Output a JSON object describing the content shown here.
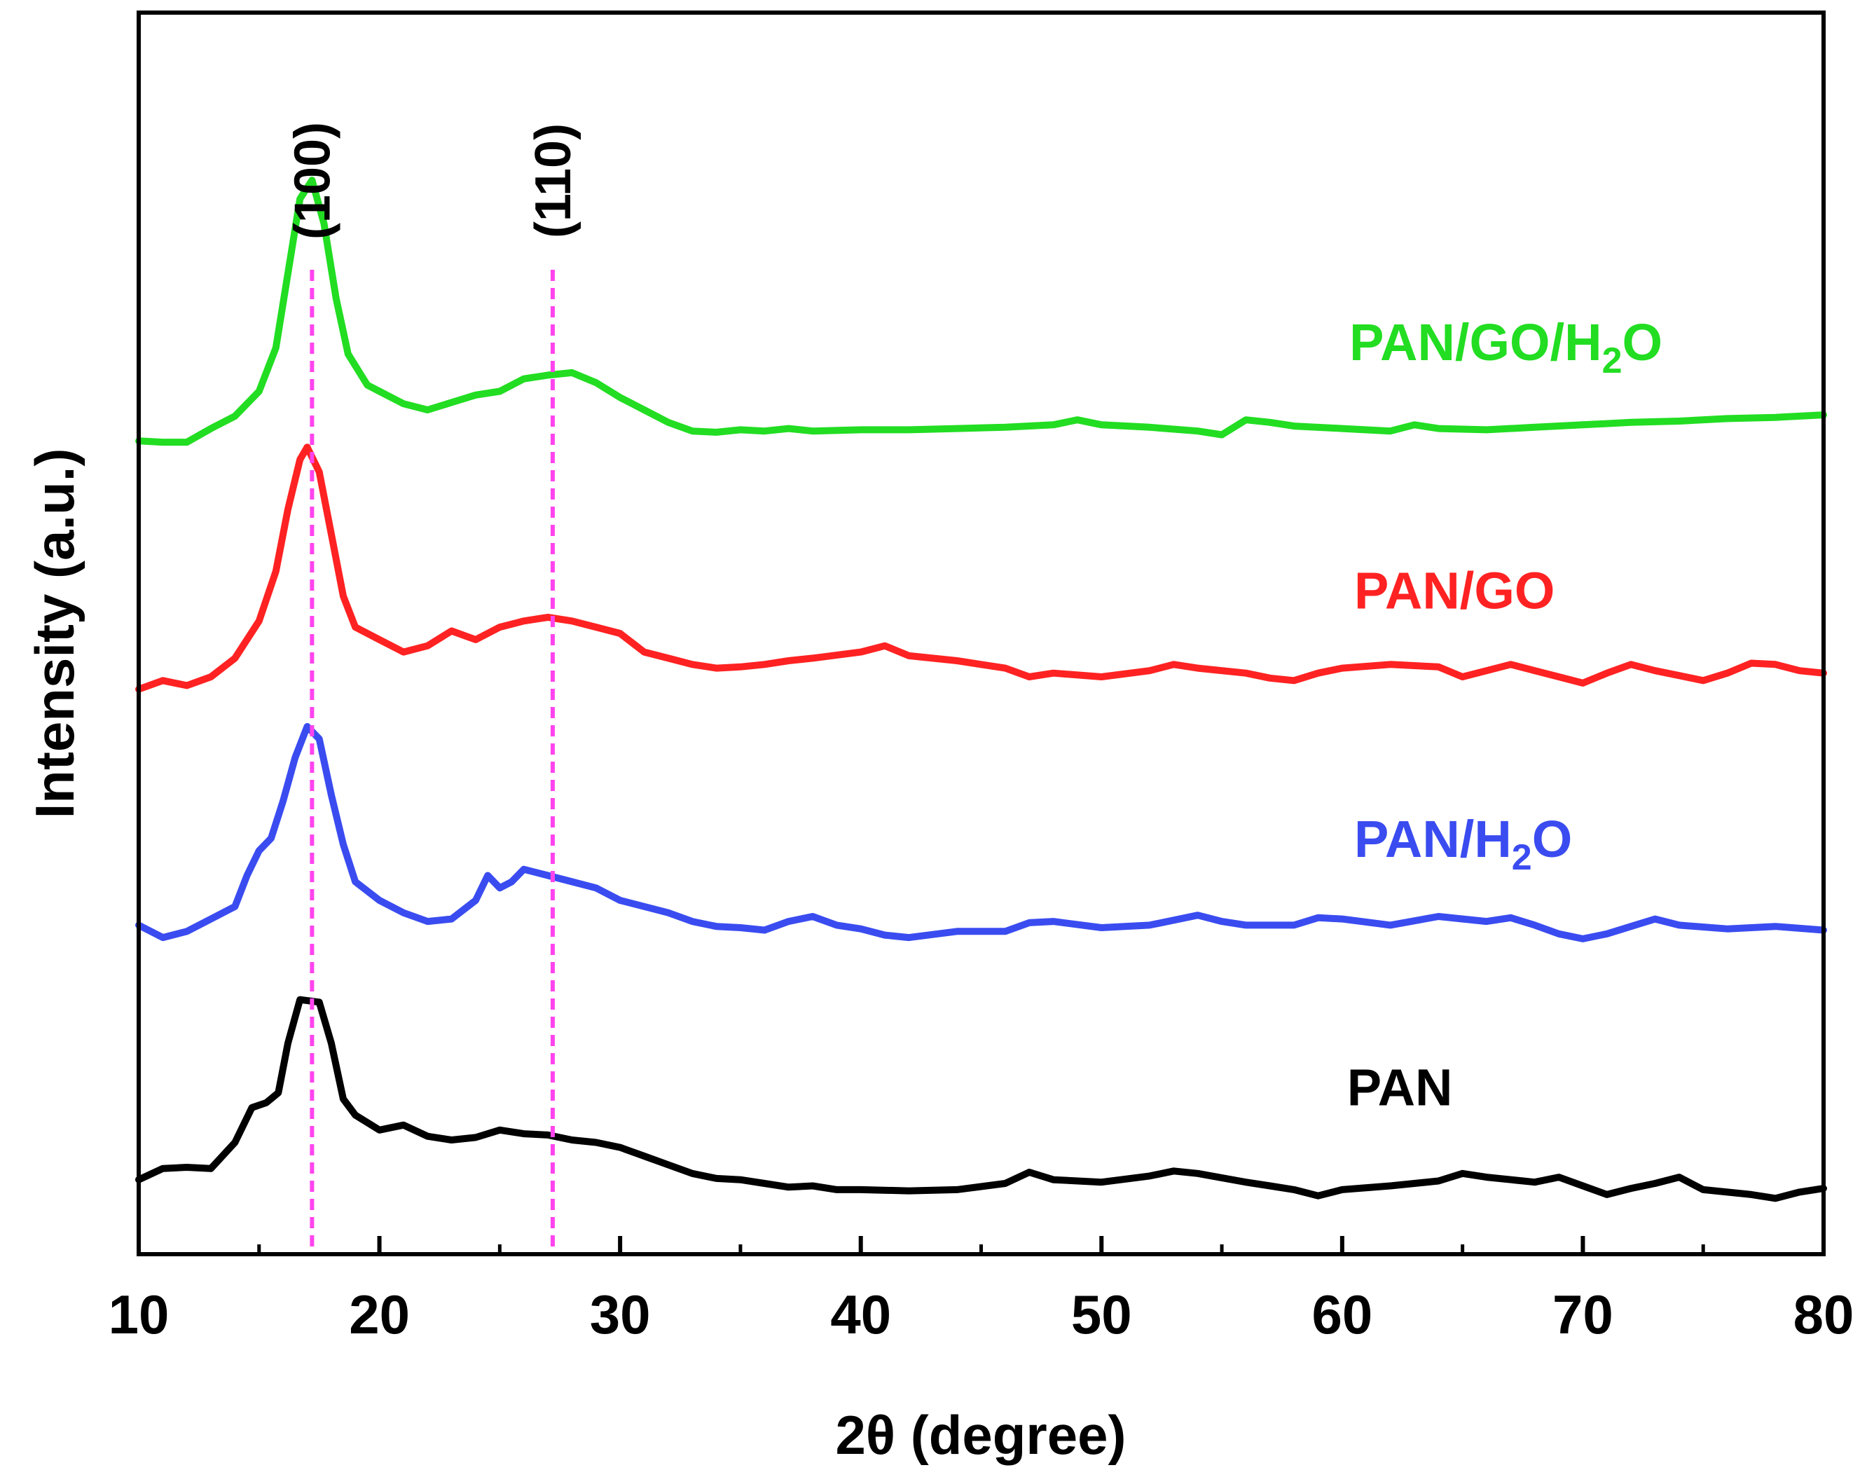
{
  "chart_data": {
    "type": "line",
    "xlabel": "2θ (degree)",
    "ylabel": "Intensity (a.u.)",
    "xlim": [
      10,
      80
    ],
    "ylim": [
      0,
      100
    ],
    "x_ticks": [
      10,
      20,
      30,
      40,
      50,
      60,
      70,
      80
    ],
    "y_ticks_shown": false,
    "reference_lines": [
      {
        "label": "(100)",
        "x": 17.2,
        "color": "#ff44ee"
      },
      {
        "label": "(110)",
        "x": 27.2,
        "color": "#ff44ee"
      }
    ],
    "series": [
      {
        "name": "PAN",
        "color": "#000000",
        "label": {
          "text": "PAN",
          "x": 60.2,
          "y": 12
        },
        "points": [
          [
            10,
            6.0
          ],
          [
            11,
            6.9
          ],
          [
            12,
            7.0
          ],
          [
            13,
            6.9
          ],
          [
            14,
            9
          ],
          [
            14.7,
            11.8
          ],
          [
            15.3,
            12.2
          ],
          [
            15.8,
            13
          ],
          [
            16.2,
            17
          ],
          [
            16.7,
            20.5
          ],
          [
            17.5,
            20.3
          ],
          [
            18,
            17
          ],
          [
            18.5,
            12.5
          ],
          [
            19,
            11.2
          ],
          [
            20,
            10
          ],
          [
            21,
            10.4
          ],
          [
            22,
            9.5
          ],
          [
            23,
            9.2
          ],
          [
            24,
            9.4
          ],
          [
            25,
            10
          ],
          [
            26,
            9.7
          ],
          [
            27,
            9.6
          ],
          [
            28,
            9.2
          ],
          [
            29,
            9.0
          ],
          [
            30,
            8.6
          ],
          [
            31,
            7.9
          ],
          [
            32,
            7.2
          ],
          [
            33,
            6.5
          ],
          [
            34,
            6.1
          ],
          [
            35,
            6.0
          ],
          [
            36,
            5.7
          ],
          [
            37,
            5.4
          ],
          [
            38,
            5.5
          ],
          [
            39,
            5.2
          ],
          [
            40,
            5.2
          ],
          [
            42,
            5.1
          ],
          [
            44,
            5.2
          ],
          [
            46,
            5.7
          ],
          [
            47,
            6.6
          ],
          [
            48,
            6.0
          ],
          [
            50,
            5.8
          ],
          [
            52,
            6.3
          ],
          [
            53,
            6.7
          ],
          [
            54,
            6.5
          ],
          [
            56,
            5.8
          ],
          [
            57,
            5.5
          ],
          [
            58,
            5.2
          ],
          [
            59,
            4.7
          ],
          [
            60,
            5.2
          ],
          [
            62,
            5.5
          ],
          [
            64,
            5.9
          ],
          [
            65,
            6.5
          ],
          [
            66,
            6.2
          ],
          [
            68,
            5.8
          ],
          [
            69,
            6.2
          ],
          [
            70,
            5.5
          ],
          [
            71,
            4.8
          ],
          [
            72,
            5.3
          ],
          [
            73,
            5.7
          ],
          [
            74,
            6.2
          ],
          [
            75,
            5.2
          ],
          [
            76,
            5.0
          ],
          [
            77,
            4.8
          ],
          [
            78,
            4.5
          ],
          [
            79,
            5.0
          ],
          [
            80,
            5.3
          ]
        ]
      },
      {
        "name": "PAN/H₂O",
        "color": "#3a4cf0",
        "label": {
          "text": "PAN/H",
          "sub": "2",
          "suffix": "O",
          "x": 60.5,
          "y": 32
        },
        "points": [
          [
            10,
            26.5
          ],
          [
            11,
            25.5
          ],
          [
            12,
            26.0
          ],
          [
            13,
            27.0
          ],
          [
            14,
            28.0
          ],
          [
            14.5,
            30.5
          ],
          [
            15,
            32.5
          ],
          [
            15.5,
            33.5
          ],
          [
            16,
            36.5
          ],
          [
            16.5,
            40
          ],
          [
            17,
            42.5
          ],
          [
            17.5,
            41.5
          ],
          [
            18,
            37
          ],
          [
            18.5,
            33
          ],
          [
            19,
            30
          ],
          [
            20,
            28.5
          ],
          [
            21,
            27.5
          ],
          [
            22,
            26.8
          ],
          [
            23,
            27.0
          ],
          [
            24,
            28.5
          ],
          [
            24.5,
            30.5
          ],
          [
            25,
            29.5
          ],
          [
            25.5,
            30
          ],
          [
            26,
            31
          ],
          [
            27,
            30.5
          ],
          [
            28,
            30
          ],
          [
            29,
            29.5
          ],
          [
            30,
            28.5
          ],
          [
            31,
            28.0
          ],
          [
            32,
            27.5
          ],
          [
            33,
            26.8
          ],
          [
            34,
            26.4
          ],
          [
            35,
            26.3
          ],
          [
            36,
            26.1
          ],
          [
            37,
            26.8
          ],
          [
            38,
            27.2
          ],
          [
            39,
            26.5
          ],
          [
            40,
            26.2
          ],
          [
            41,
            25.7
          ],
          [
            42,
            25.5
          ],
          [
            44,
            26.0
          ],
          [
            46,
            26.0
          ],
          [
            47,
            26.7
          ],
          [
            48,
            26.8
          ],
          [
            50,
            26.3
          ],
          [
            52,
            26.5
          ],
          [
            54,
            27.3
          ],
          [
            55,
            26.8
          ],
          [
            56,
            26.5
          ],
          [
            58,
            26.5
          ],
          [
            59,
            27.1
          ],
          [
            60,
            27.0
          ],
          [
            62,
            26.5
          ],
          [
            64,
            27.2
          ],
          [
            66,
            26.8
          ],
          [
            67,
            27.1
          ],
          [
            68,
            26.5
          ],
          [
            69,
            25.8
          ],
          [
            70,
            25.4
          ],
          [
            71,
            25.8
          ],
          [
            72,
            26.4
          ],
          [
            73,
            27.0
          ],
          [
            74,
            26.5
          ],
          [
            76,
            26.2
          ],
          [
            78,
            26.4
          ],
          [
            80,
            26.1
          ]
        ]
      },
      {
        "name": "PAN/GO",
        "color": "#ff2222",
        "label": {
          "text": "PAN/GO",
          "x": 60.5,
          "y": 52
        },
        "points": [
          [
            10,
            45.5
          ],
          [
            11,
            46.2
          ],
          [
            12,
            45.8
          ],
          [
            13,
            46.5
          ],
          [
            14,
            48
          ],
          [
            15,
            51
          ],
          [
            15.7,
            55
          ],
          [
            16.2,
            60
          ],
          [
            16.7,
            64
          ],
          [
            17,
            65
          ],
          [
            17.5,
            63
          ],
          [
            18,
            58
          ],
          [
            18.5,
            53
          ],
          [
            19,
            50.5
          ],
          [
            20,
            49.5
          ],
          [
            21,
            48.5
          ],
          [
            22,
            49
          ],
          [
            23,
            50.2
          ],
          [
            24,
            49.5
          ],
          [
            25,
            50.5
          ],
          [
            26,
            51
          ],
          [
            27,
            51.3
          ],
          [
            28,
            51
          ],
          [
            29,
            50.5
          ],
          [
            30,
            50
          ],
          [
            31,
            48.5
          ],
          [
            32,
            48
          ],
          [
            33,
            47.5
          ],
          [
            34,
            47.2
          ],
          [
            35,
            47.3
          ],
          [
            36,
            47.5
          ],
          [
            37,
            47.8
          ],
          [
            38,
            48
          ],
          [
            40,
            48.5
          ],
          [
            41,
            49
          ],
          [
            42,
            48.2
          ],
          [
            44,
            47.8
          ],
          [
            46,
            47.2
          ],
          [
            47,
            46.5
          ],
          [
            48,
            46.8
          ],
          [
            50,
            46.5
          ],
          [
            52,
            47.0
          ],
          [
            53,
            47.5
          ],
          [
            54,
            47.2
          ],
          [
            56,
            46.8
          ],
          [
            57,
            46.4
          ],
          [
            58,
            46.2
          ],
          [
            59,
            46.8
          ],
          [
            60,
            47.2
          ],
          [
            62,
            47.5
          ],
          [
            64,
            47.3
          ],
          [
            65,
            46.5
          ],
          [
            66,
            47.0
          ],
          [
            67,
            47.5
          ],
          [
            68,
            47.0
          ],
          [
            69,
            46.5
          ],
          [
            70,
            46.0
          ],
          [
            71,
            46.8
          ],
          [
            72,
            47.5
          ],
          [
            73,
            47.0
          ],
          [
            74,
            46.6
          ],
          [
            75,
            46.2
          ],
          [
            76,
            46.8
          ],
          [
            77,
            47.6
          ],
          [
            78,
            47.5
          ],
          [
            79,
            47.0
          ],
          [
            80,
            46.8
          ]
        ]
      },
      {
        "name": "PAN/GO/H₂O",
        "color": "#22dd22",
        "label": {
          "text": "PAN/GO/H",
          "sub": "2",
          "suffix": "O",
          "x": 60.3,
          "y": 72
        },
        "points": [
          [
            10,
            65.5
          ],
          [
            11,
            65.4
          ],
          [
            12,
            65.4
          ],
          [
            13,
            66.5
          ],
          [
            14,
            67.5
          ],
          [
            15,
            69.5
          ],
          [
            15.7,
            73
          ],
          [
            16.2,
            79
          ],
          [
            16.7,
            85
          ],
          [
            17.2,
            86.5
          ],
          [
            17.7,
            83
          ],
          [
            18.2,
            77
          ],
          [
            18.7,
            72.5
          ],
          [
            19.5,
            70
          ],
          [
            20,
            69.5
          ],
          [
            21,
            68.5
          ],
          [
            22,
            68
          ],
          [
            23,
            68.6
          ],
          [
            24,
            69.2
          ],
          [
            25,
            69.5
          ],
          [
            26,
            70.5
          ],
          [
            27,
            70.8
          ],
          [
            28,
            71.0
          ],
          [
            29,
            70.2
          ],
          [
            30,
            69.0
          ],
          [
            31,
            68.0
          ],
          [
            32,
            67.0
          ],
          [
            33,
            66.3
          ],
          [
            34,
            66.2
          ],
          [
            35,
            66.4
          ],
          [
            36,
            66.3
          ],
          [
            37,
            66.5
          ],
          [
            38,
            66.3
          ],
          [
            40,
            66.4
          ],
          [
            42,
            66.4
          ],
          [
            44,
            66.5
          ],
          [
            46,
            66.6
          ],
          [
            48,
            66.8
          ],
          [
            49,
            67.2
          ],
          [
            50,
            66.8
          ],
          [
            52,
            66.6
          ],
          [
            54,
            66.3
          ],
          [
            55,
            66.0
          ],
          [
            56,
            67.2
          ],
          [
            57,
            67.0
          ],
          [
            58,
            66.7
          ],
          [
            60,
            66.5
          ],
          [
            62,
            66.3
          ],
          [
            63,
            66.8
          ],
          [
            64,
            66.5
          ],
          [
            66,
            66.4
          ],
          [
            68,
            66.6
          ],
          [
            70,
            66.8
          ],
          [
            72,
            67.0
          ],
          [
            74,
            67.1
          ],
          [
            76,
            67.3
          ],
          [
            78,
            67.4
          ],
          [
            80,
            67.6
          ]
        ]
      }
    ]
  }
}
